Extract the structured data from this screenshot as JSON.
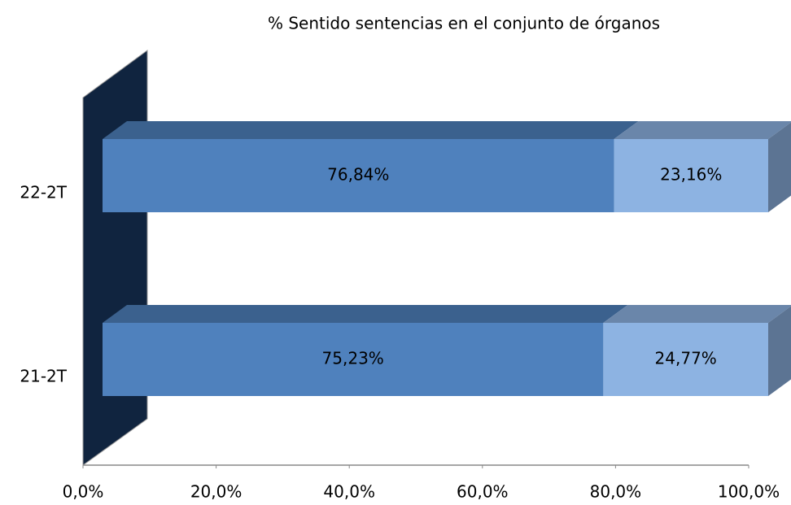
{
  "chart_data": {
    "type": "bar",
    "stacked": true,
    "orientation": "horizontal",
    "three_d": true,
    "title": "% Sentido sentencias en el conjunto de órganos",
    "categories": [
      "21-2T",
      "22-2T"
    ],
    "series": [
      {
        "color": "#4f81bd",
        "values": [
          75.23,
          76.84
        ],
        "value_labels": [
          "75,23%",
          "76,84%"
        ]
      },
      {
        "color": "#8db3e2",
        "values": [
          24.77,
          23.16
        ],
        "value_labels": [
          "24,77%",
          "23,16%"
        ]
      }
    ],
    "xlim": [
      0,
      100
    ],
    "xticks": [
      {
        "value": 0,
        "label": "0,0%"
      },
      {
        "value": 20,
        "label": "20,0%"
      },
      {
        "value": 40,
        "label": "40,0%"
      },
      {
        "value": 60,
        "label": "60,0%"
      },
      {
        "value": 80,
        "label": "80,0%"
      },
      {
        "value": 100,
        "label": "100,0%"
      }
    ]
  }
}
